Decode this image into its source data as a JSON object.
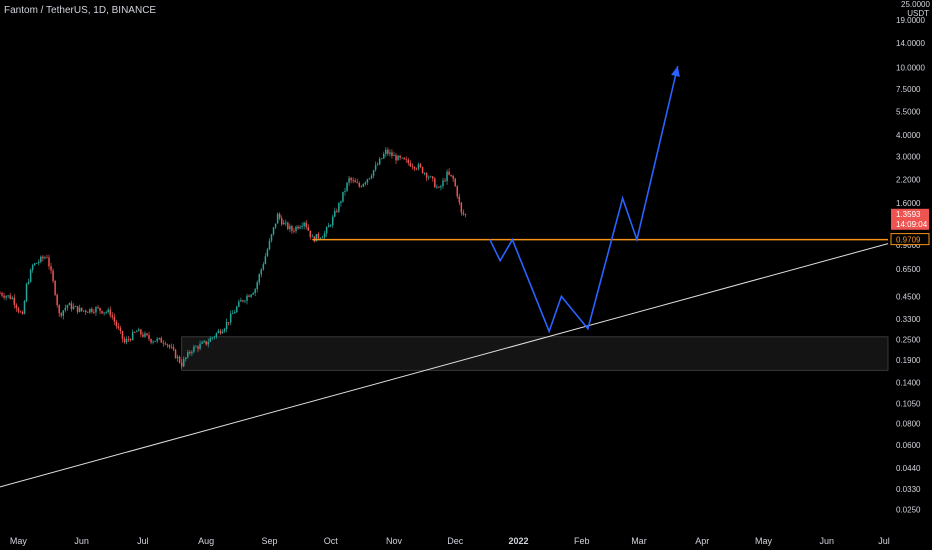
{
  "header": {
    "title": "Fantom / TetherUS, 1D, BINANCE"
  },
  "axis": {
    "currency_top": "25.0000",
    "currency_unit": "USDT"
  },
  "colors": {
    "background": "#000000",
    "up": "#26a69a",
    "down": "#ef5350",
    "support_line": "#f7931a",
    "projection": "#2962ff",
    "trendline": "#e0e0e0",
    "zone_fill": "#141414"
  },
  "chart_data": {
    "type": "candlestick",
    "symbol": "Fantom / TetherUS",
    "interval": "1D",
    "exchange": "BINANCE",
    "y_scale": "log",
    "ylim": [
      0.02,
      25
    ],
    "xlim": [
      "2021-04-22",
      "2022-07-01"
    ],
    "y_ticks": [
      "19.0000",
      "14.0000",
      "10.0000",
      "7.5000",
      "5.5000",
      "4.0000",
      "3.0000",
      "2.2000",
      "1.6000",
      "0.9000",
      "0.6500",
      "0.4500",
      "0.3300",
      "0.2500",
      "0.1900",
      "0.1400",
      "0.1050",
      "0.0800",
      "0.0600",
      "0.0440",
      "0.0330",
      "0.0250"
    ],
    "x_ticks": [
      {
        "label": "May",
        "date": "2021-05-01"
      },
      {
        "label": "Jun",
        "date": "2021-06-01"
      },
      {
        "label": "Jul",
        "date": "2021-07-01"
      },
      {
        "label": "Aug",
        "date": "2021-08-01"
      },
      {
        "label": "Sep",
        "date": "2021-09-01"
      },
      {
        "label": "Oct",
        "date": "2021-10-01"
      },
      {
        "label": "Nov",
        "date": "2021-11-01"
      },
      {
        "label": "Dec",
        "date": "2021-12-01"
      },
      {
        "label": "2022",
        "date": "2022-01-01",
        "bold": true
      },
      {
        "label": "Feb",
        "date": "2022-02-01"
      },
      {
        "label": "Mar",
        "date": "2022-03-01"
      },
      {
        "label": "Apr",
        "date": "2022-04-01"
      },
      {
        "label": "May",
        "date": "2022-05-01"
      },
      {
        "label": "Jun",
        "date": "2022-06-01"
      },
      {
        "label": "Jul",
        "date": "2022-07-01"
      }
    ],
    "price_path": [
      [
        "2021-04-22",
        0.47
      ],
      [
        "2021-04-28",
        0.44
      ],
      [
        "2021-05-03",
        0.34
      ],
      [
        "2021-05-05",
        0.52
      ],
      [
        "2021-05-08",
        0.68
      ],
      [
        "2021-05-12",
        0.74
      ],
      [
        "2021-05-15",
        0.78
      ],
      [
        "2021-05-19",
        0.48
      ],
      [
        "2021-05-21",
        0.35
      ],
      [
        "2021-05-25",
        0.4
      ],
      [
        "2021-06-01",
        0.37
      ],
      [
        "2021-06-08",
        0.38
      ],
      [
        "2021-06-15",
        0.36
      ],
      [
        "2021-06-22",
        0.24
      ],
      [
        "2021-06-28",
        0.28
      ],
      [
        "2021-07-05",
        0.25
      ],
      [
        "2021-07-12",
        0.245
      ],
      [
        "2021-07-20",
        0.18
      ],
      [
        "2021-07-25",
        0.22
      ],
      [
        "2021-08-01",
        0.24
      ],
      [
        "2021-08-10",
        0.3
      ],
      [
        "2021-08-18",
        0.42
      ],
      [
        "2021-08-25",
        0.5
      ],
      [
        "2021-08-31",
        0.85
      ],
      [
        "2021-09-05",
        1.35
      ],
      [
        "2021-09-08",
        1.2
      ],
      [
        "2021-09-12",
        1.1
      ],
      [
        "2021-09-18",
        1.25
      ],
      [
        "2021-09-22",
        0.98
      ],
      [
        "2021-09-28",
        1.05
      ],
      [
        "2021-10-01",
        1.22
      ],
      [
        "2021-10-05",
        1.55
      ],
      [
        "2021-10-10",
        2.2
      ],
      [
        "2021-10-15",
        2.0
      ],
      [
        "2021-10-20",
        2.3
      ],
      [
        "2021-10-25",
        2.8
      ],
      [
        "2021-10-28",
        3.2
      ],
      [
        "2021-11-03",
        2.9
      ],
      [
        "2021-11-08",
        2.75
      ],
      [
        "2021-11-13",
        2.6
      ],
      [
        "2021-11-18",
        2.3
      ],
      [
        "2021-11-23",
        1.9
      ],
      [
        "2021-11-27",
        2.35
      ],
      [
        "2021-11-30",
        2.2
      ],
      [
        "2021-12-02",
        1.8
      ],
      [
        "2021-12-04",
        1.38
      ],
      [
        "2021-12-06",
        1.3593
      ]
    ],
    "last_price": {
      "value": 1.3593,
      "label": "1.3593",
      "countdown": "14:09:04"
    },
    "support_level": {
      "value": 0.9709,
      "label": "0.9709",
      "from": "2021-09-22"
    },
    "demand_zone": {
      "from": "2021-07-20",
      "top": 0.26,
      "bottom": 0.165
    },
    "trendline": {
      "points": [
        [
          "2021-04-22",
          0.034
        ],
        [
          "2022-07-01",
          0.92
        ]
      ]
    },
    "projection_path": [
      [
        "2021-12-18",
        0.97
      ],
      [
        "2021-12-23",
        0.73
      ],
      [
        "2021-12-29",
        0.97
      ],
      [
        "2022-01-16",
        0.28
      ],
      [
        "2022-01-22",
        0.45
      ],
      [
        "2022-02-04",
        0.29
      ],
      [
        "2022-02-21",
        1.7
      ],
      [
        "2022-02-28",
        0.97
      ],
      [
        "2022-03-20",
        10.2
      ]
    ]
  }
}
